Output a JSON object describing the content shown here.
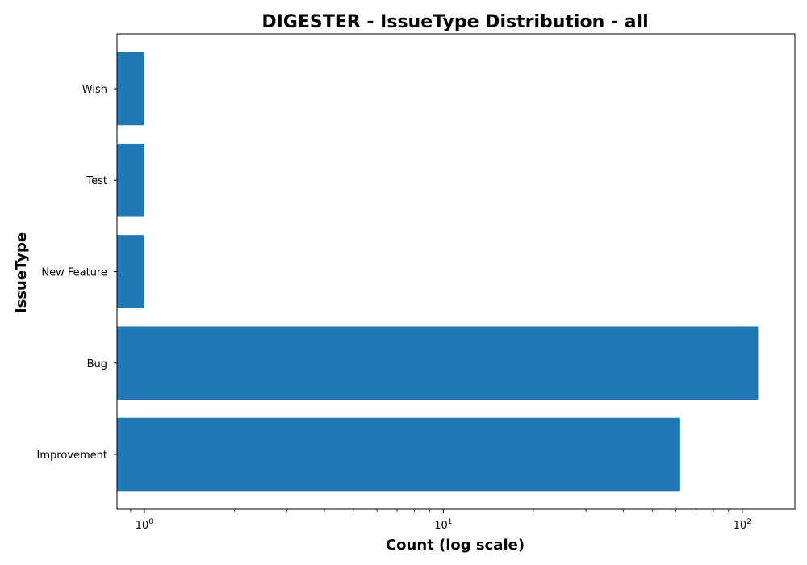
{
  "chart_data": {
    "type": "bar",
    "orientation": "horizontal",
    "title": "DIGESTER - IssueType Distribution - all",
    "xlabel": "Count (log scale)",
    "ylabel": "IssueType",
    "x_scale": "log",
    "xlim": [
      0.81,
      150
    ],
    "x_ticks": [
      {
        "value": 1,
        "base": "10",
        "exp": "0"
      },
      {
        "value": 10,
        "base": "10",
        "exp": "1"
      },
      {
        "value": 100,
        "base": "10",
        "exp": "2"
      }
    ],
    "categories": [
      "Improvement",
      "Bug",
      "New Feature",
      "Test",
      "Wish"
    ],
    "values": [
      62,
      113,
      1,
      1,
      1
    ],
    "color": "#1f77b4",
    "grid": false
  }
}
